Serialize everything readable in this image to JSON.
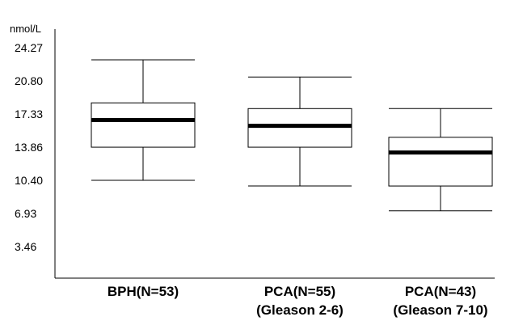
{
  "chart_data": {
    "type": "boxplot",
    "unit_label": "nmol/L",
    "y_ticks": [
      "24.27",
      "20.80",
      "17.33",
      "13.86",
      "10.40",
      "6.93",
      "3.46"
    ],
    "y_tick_values": [
      24.27,
      20.8,
      17.33,
      13.86,
      10.4,
      6.93,
      3.46
    ],
    "ylim": [
      0,
      27.0
    ],
    "grid": false,
    "categories": [
      {
        "line1": "BPH(N=53)",
        "line2": ""
      },
      {
        "line1": "PCA(N=55)",
        "line2": "(Gleason 2-6)"
      },
      {
        "line1": "PCA(N=43)",
        "line2": "(Gleason 7-10)"
      }
    ],
    "boxes": [
      {
        "whisker_low": 10.4,
        "q1": 13.86,
        "median": 16.7,
        "q3": 18.5,
        "whisker_high": 23.0
      },
      {
        "whisker_low": 9.8,
        "q1": 13.86,
        "median": 16.1,
        "q3": 17.9,
        "whisker_high": 21.2
      },
      {
        "whisker_low": 7.2,
        "q1": 9.8,
        "median": 13.3,
        "q3": 14.9,
        "whisker_high": 17.9
      }
    ]
  }
}
